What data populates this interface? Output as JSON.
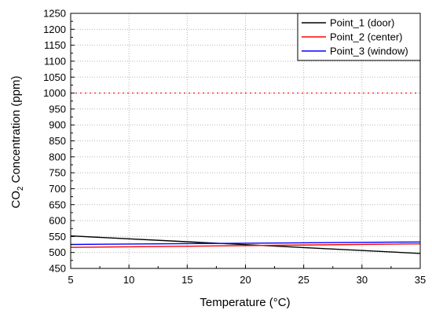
{
  "chart_data": {
    "type": "line",
    "xlabel": "Temperature (°C)",
    "ylabel_parts": {
      "pre": "CO",
      "sub": "2",
      "post": " Concentration (ppm)"
    },
    "xlim": [
      5,
      35
    ],
    "ylim": [
      450,
      1250
    ],
    "x_ticks": [
      5,
      10,
      15,
      20,
      25,
      30,
      35
    ],
    "y_ticks": [
      450,
      500,
      550,
      600,
      650,
      700,
      750,
      800,
      850,
      900,
      950,
      1000,
      1050,
      1100,
      1150,
      1200,
      1250
    ],
    "grid": true,
    "legend_position": "top-right",
    "series": [
      {
        "name": "Point_1 (door)",
        "color": "#000000",
        "x": [
          5,
          35
        ],
        "y": [
          552,
          497
        ]
      },
      {
        "name": "Point_2 (center)",
        "color": "#ff0000",
        "x": [
          5,
          35
        ],
        "y": [
          516,
          527
        ]
      },
      {
        "name": "Point_3 (window)",
        "color": "#0000ff",
        "x": [
          5,
          35
        ],
        "y": [
          525,
          533
        ]
      }
    ],
    "reference_line": {
      "y": 1000,
      "color": "#ff0000",
      "style": "dotted"
    }
  }
}
